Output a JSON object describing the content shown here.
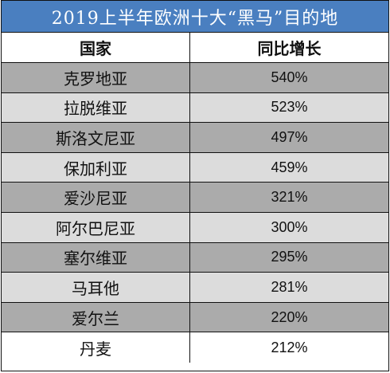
{
  "title": "2019上半年欧洲十大“黑马”目的地",
  "headers": {
    "country": "国家",
    "growth": "同比增长"
  },
  "rows": [
    {
      "country": "克罗地亚",
      "growth": "540%"
    },
    {
      "country": "拉脱维亚",
      "growth": "523%"
    },
    {
      "country": "斯洛文尼亚",
      "growth": "497%"
    },
    {
      "country": "保加利亚",
      "growth": "459%"
    },
    {
      "country": "爱沙尼亚",
      "growth": "321%"
    },
    {
      "country": "阿尔巴尼亚",
      "growth": "300%"
    },
    {
      "country": "塞尔维亚",
      "growth": "295%"
    },
    {
      "country": "马耳他",
      "growth": "281%"
    },
    {
      "country": "爱尔兰",
      "growth": "220%"
    },
    {
      "country": "丹麦",
      "growth": "212%"
    }
  ],
  "colors": {
    "title_bg": "#4a7fc0",
    "row_dark": "#ababab",
    "row_light": "#dcdcdc"
  }
}
